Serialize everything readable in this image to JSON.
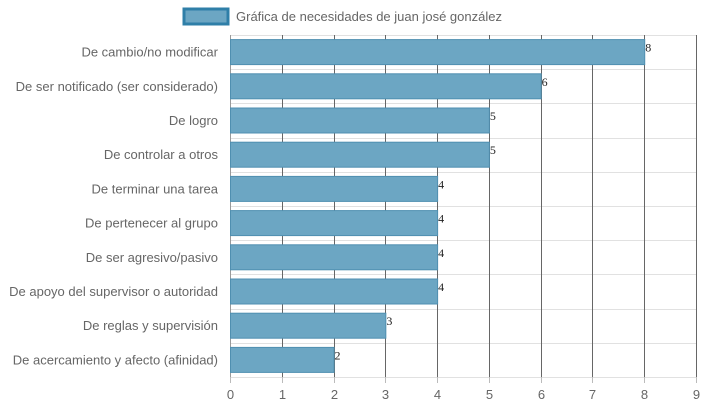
{
  "chart_data": {
    "type": "bar",
    "orientation": "horizontal",
    "categories": [
      "De cambio/no modificar",
      "De ser notificado (ser considerado)",
      "De logro",
      "De controlar a otros",
      "De terminar una tarea",
      "De pertenecer al grupo",
      "De ser agresivo/pasivo",
      "De apoyo del supervisor o autoridad",
      "De reglas y supervisión",
      "De acercamiento y afecto (afinidad)"
    ],
    "series": [
      {
        "name": "Gráfica de necesidades de juan josé gonzález",
        "values": [
          8,
          6,
          5,
          5,
          4,
          4,
          4,
          4,
          3,
          2
        ]
      }
    ],
    "xlim": [
      0,
      9
    ],
    "xticks": [
      0,
      1,
      2,
      3,
      4,
      5,
      6,
      7,
      8,
      9
    ],
    "grid": true,
    "legend_position": "top",
    "colors": {
      "bar_fill": "#6ca6c3",
      "bar_stroke": "#4f8fb0",
      "legend_stroke": "#2f7fa8",
      "grid": "#e1e1e1"
    }
  }
}
